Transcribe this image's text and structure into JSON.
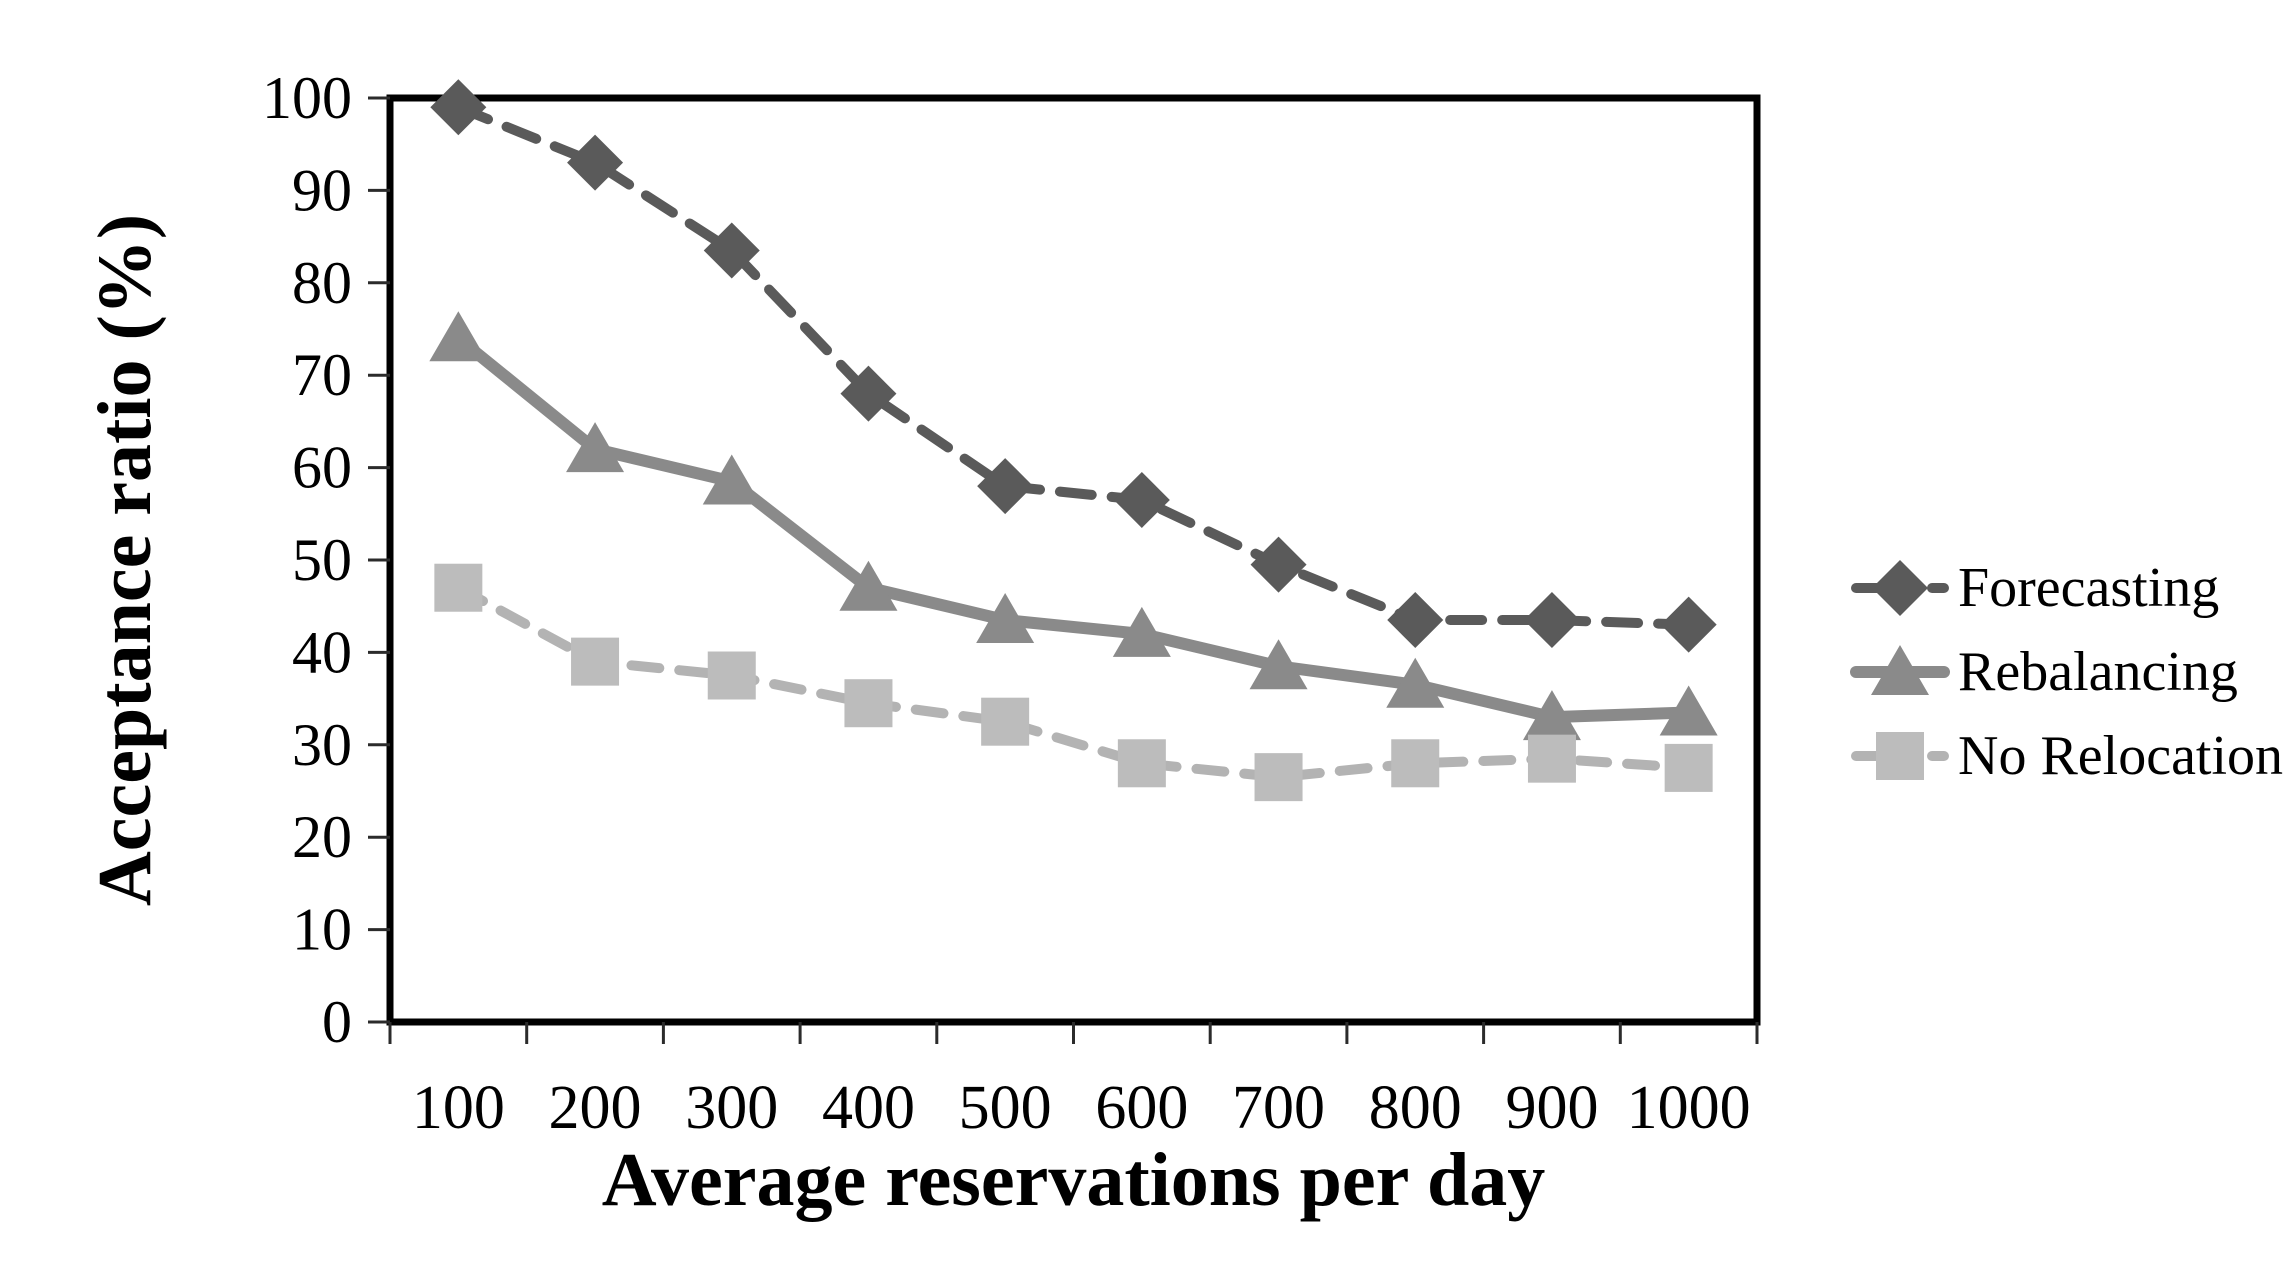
{
  "chart_data": {
    "type": "line",
    "x": [
      100,
      200,
      300,
      400,
      500,
      600,
      700,
      800,
      900,
      1000
    ],
    "x_tick_labels": [
      "100",
      "200",
      "300",
      "400",
      "500",
      "600",
      "700",
      "800",
      "900",
      "1000"
    ],
    "y_ticks": [
      0,
      10,
      20,
      30,
      40,
      50,
      60,
      70,
      80,
      90,
      100
    ],
    "ylim": [
      0,
      100
    ],
    "xlabel": "Average reservations per day",
    "ylabel": "Acceptance ratio (%)",
    "title": "",
    "grid": false,
    "legend_position": "right",
    "series": [
      {
        "name": "Forecasting",
        "marker": "diamond",
        "line_style": "dashed",
        "color": "#5a5a5a",
        "values": [
          99,
          93,
          83.5,
          68,
          58,
          56.5,
          49.5,
          43.5,
          43.5,
          43
        ]
      },
      {
        "name": "Rebalancing",
        "marker": "triangle",
        "line_style": "solid",
        "color": "#8a8a8a",
        "values": [
          74,
          62,
          58.5,
          47,
          43.5,
          42,
          38.5,
          36.5,
          33,
          33.5
        ]
      },
      {
        "name": "No Relocation",
        "marker": "square",
        "line_style": "dashed",
        "color": "#b3b3b3",
        "marker_color": "#bcbcbc",
        "values": [
          47,
          39,
          37.5,
          34.5,
          32.5,
          28,
          26.5,
          28,
          28.5,
          27.5
        ]
      }
    ],
    "colors": {
      "axis_border": "#000000",
      "tick": "#2b2b2b",
      "text": "#000000",
      "background": "#ffffff"
    }
  }
}
